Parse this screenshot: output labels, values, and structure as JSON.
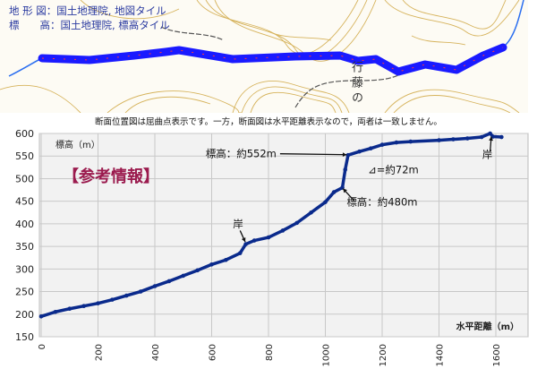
{
  "map": {
    "legend_terrain": "地 形 図：国土地理院, 地図タイル",
    "legend_elevation": "標　　高：国土地理院, 標高タイル",
    "place_label": "行 藤 の",
    "route_color": "#1a1aff"
  },
  "note": "断面位置図は屈曲点表示です。一方，断面図は水平距離表示なので，両者は一致しません。",
  "watermark": "【参考情報】",
  "chart_data": {
    "type": "line",
    "title": "",
    "xlabel": "水平距離（m）",
    "ylabel": "標高（m）",
    "xlim": [
      0,
      1700
    ],
    "ylim": [
      150,
      600
    ],
    "xticks": [
      0,
      200,
      400,
      600,
      800,
      1000,
      1200,
      1400,
      1600
    ],
    "yticks": [
      150,
      200,
      250,
      300,
      350,
      400,
      450,
      500,
      550,
      600
    ],
    "grid": true,
    "series_color": "#0a2a8c",
    "series": [
      {
        "name": "標高",
        "x": [
          0,
          50,
          100,
          150,
          200,
          250,
          300,
          350,
          400,
          450,
          500,
          550,
          600,
          650,
          700,
          720,
          750,
          800,
          850,
          900,
          950,
          1000,
          1030,
          1060,
          1070,
          1080,
          1120,
          1160,
          1200,
          1250,
          1300,
          1400,
          1450,
          1500,
          1550,
          1580,
          1590,
          1620
        ],
        "y": [
          195,
          205,
          212,
          218,
          224,
          232,
          241,
          250,
          262,
          273,
          285,
          297,
          310,
          320,
          335,
          355,
          363,
          370,
          385,
          402,
          425,
          448,
          470,
          480,
          520,
          552,
          560,
          567,
          575,
          580,
          582,
          585,
          587,
          589,
          592,
          600,
          593,
          592
        ]
      }
    ],
    "annotations": [
      {
        "text": "岸",
        "x": 720,
        "y": 355
      },
      {
        "text": "標高：約552m",
        "x": 1080,
        "y": 552
      },
      {
        "text": "⊿=約72m",
        "x": 1150,
        "y": 515
      },
      {
        "text": "標高：約480m",
        "x": 1060,
        "y": 480
      },
      {
        "text": "岸",
        "x": 1580,
        "y": 600
      }
    ]
  }
}
